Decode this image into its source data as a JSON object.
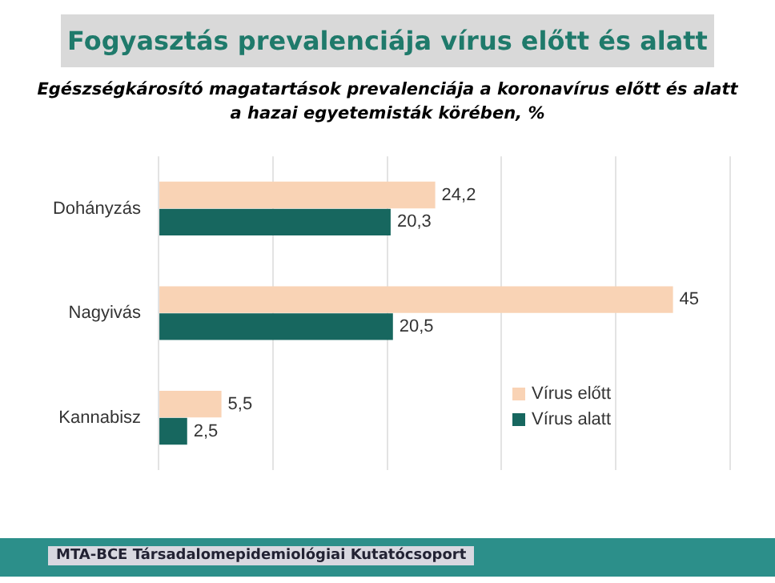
{
  "chart_data": {
    "type": "bar",
    "orientation": "horizontal",
    "title": "Fogyasztás prevalenciája vírus előtt és alatt",
    "subtitle": "Egészségkárosító magatartások prevalenciája a koronavírus előtt és alatt a hazai egyetemisták körében, %",
    "categories": [
      "Dohányzás",
      "Nagyivás",
      "Kannabisz"
    ],
    "series": [
      {
        "name": "Vírus előtt",
        "color": "#f9d3b5",
        "values": [
          24.2,
          45,
          5.5
        ],
        "value_labels": [
          "24,2",
          "45",
          "5,5"
        ]
      },
      {
        "name": "Vírus alatt",
        "color": "#17675f",
        "values": [
          20.3,
          20.5,
          2.5
        ],
        "value_labels": [
          "20,3",
          "20,5",
          "2,5"
        ]
      }
    ],
    "xlim": [
      0,
      50
    ],
    "xticks": [
      {
        "value": 0,
        "label": null
      },
      {
        "value": 10,
        "label": null
      },
      {
        "value": 20,
        "label": null
      },
      {
        "value": 30,
        "label": null
      },
      {
        "value": 40,
        "label": null
      },
      {
        "value": 50,
        "label": null
      }
    ],
    "tick_labels": "y",
    "grid": "x",
    "legend": "bottom right",
    "annotations": [
      "MTA-BCE Társadalomepidemiológiai Kutatócsoport"
    ]
  }
}
